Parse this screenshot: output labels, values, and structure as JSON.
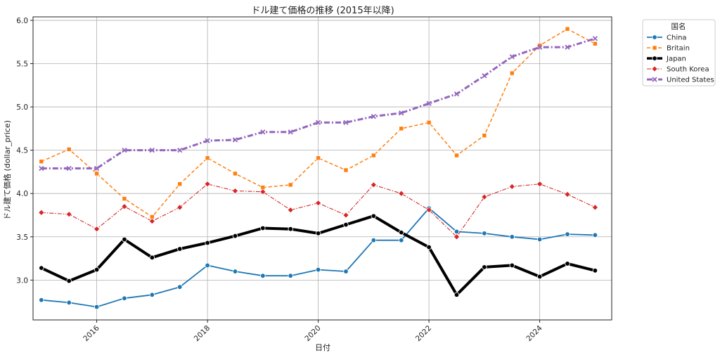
{
  "chart_data": {
    "type": "line",
    "title": "ドル建て価格の推移 (2015年以降)",
    "xlabel": "日付",
    "ylabel": "ドル建て価格 (dollar_price)",
    "x_tick_labels": [
      "2016",
      "2018",
      "2020",
      "2022",
      "2024"
    ],
    "y_tick_labels": [
      "3.0",
      "3.5",
      "4.0",
      "4.5",
      "5.0",
      "5.5",
      "6.0"
    ],
    "ylim": [
      2.54,
      6.04
    ],
    "xlim": [
      2014.85,
      2025.3
    ],
    "grid": true,
    "legend": {
      "title": "国名",
      "placement": "outside-top-right"
    },
    "x": [
      2015.0,
      2015.5,
      2016.0,
      2016.5,
      2017.0,
      2017.5,
      2018.0,
      2018.5,
      2019.0,
      2019.5,
      2020.0,
      2020.5,
      2021.0,
      2021.5,
      2022.0,
      2022.5,
      2023.0,
      2023.5,
      2024.0,
      2024.5,
      2025.0
    ],
    "series": [
      {
        "name": "China",
        "color": "#1f77b4",
        "line_style": "solid",
        "marker": "circle",
        "values": [
          2.77,
          2.74,
          2.69,
          2.79,
          2.83,
          2.92,
          3.17,
          3.1,
          3.05,
          3.05,
          3.12,
          3.1,
          3.46,
          3.46,
          3.83,
          3.56,
          3.54,
          3.5,
          3.47,
          3.53,
          3.52
        ]
      },
      {
        "name": "Britain",
        "color": "#ff7f0e",
        "line_style": "dashed",
        "marker": "square",
        "values": [
          4.37,
          4.51,
          4.23,
          3.94,
          3.73,
          4.11,
          4.41,
          4.23,
          4.07,
          4.1,
          4.41,
          4.27,
          4.44,
          4.75,
          4.82,
          4.44,
          4.67,
          5.39,
          5.71,
          5.9,
          5.73
        ]
      },
      {
        "name": "Japan",
        "color": "#000000",
        "line_style": "solid-thick",
        "marker": "circle",
        "values": [
          3.14,
          2.99,
          3.12,
          3.47,
          3.26,
          3.36,
          3.43,
          3.51,
          3.6,
          3.59,
          3.54,
          3.64,
          3.74,
          3.55,
          3.38,
          2.83,
          3.15,
          3.17,
          3.04,
          3.19,
          3.11
        ]
      },
      {
        "name": "South Korea",
        "color": "#d62728",
        "line_style": "dashdot",
        "marker": "diamond",
        "values": [
          3.78,
          3.76,
          3.59,
          3.85,
          3.68,
          3.84,
          4.11,
          4.03,
          4.02,
          3.81,
          3.89,
          3.75,
          4.1,
          4.0,
          3.81,
          3.5,
          3.96,
          4.08,
          4.11,
          3.99,
          3.84
        ]
      },
      {
        "name": "United States",
        "color": "#9467bd",
        "line_style": "dashdot-thick",
        "marker": "x",
        "values": [
          4.29,
          4.29,
          4.29,
          4.5,
          4.5,
          4.5,
          4.61,
          4.62,
          4.71,
          4.71,
          4.82,
          4.82,
          4.89,
          4.93,
          5.04,
          5.15,
          5.36,
          5.58,
          5.69,
          5.69,
          5.79
        ]
      }
    ]
  }
}
